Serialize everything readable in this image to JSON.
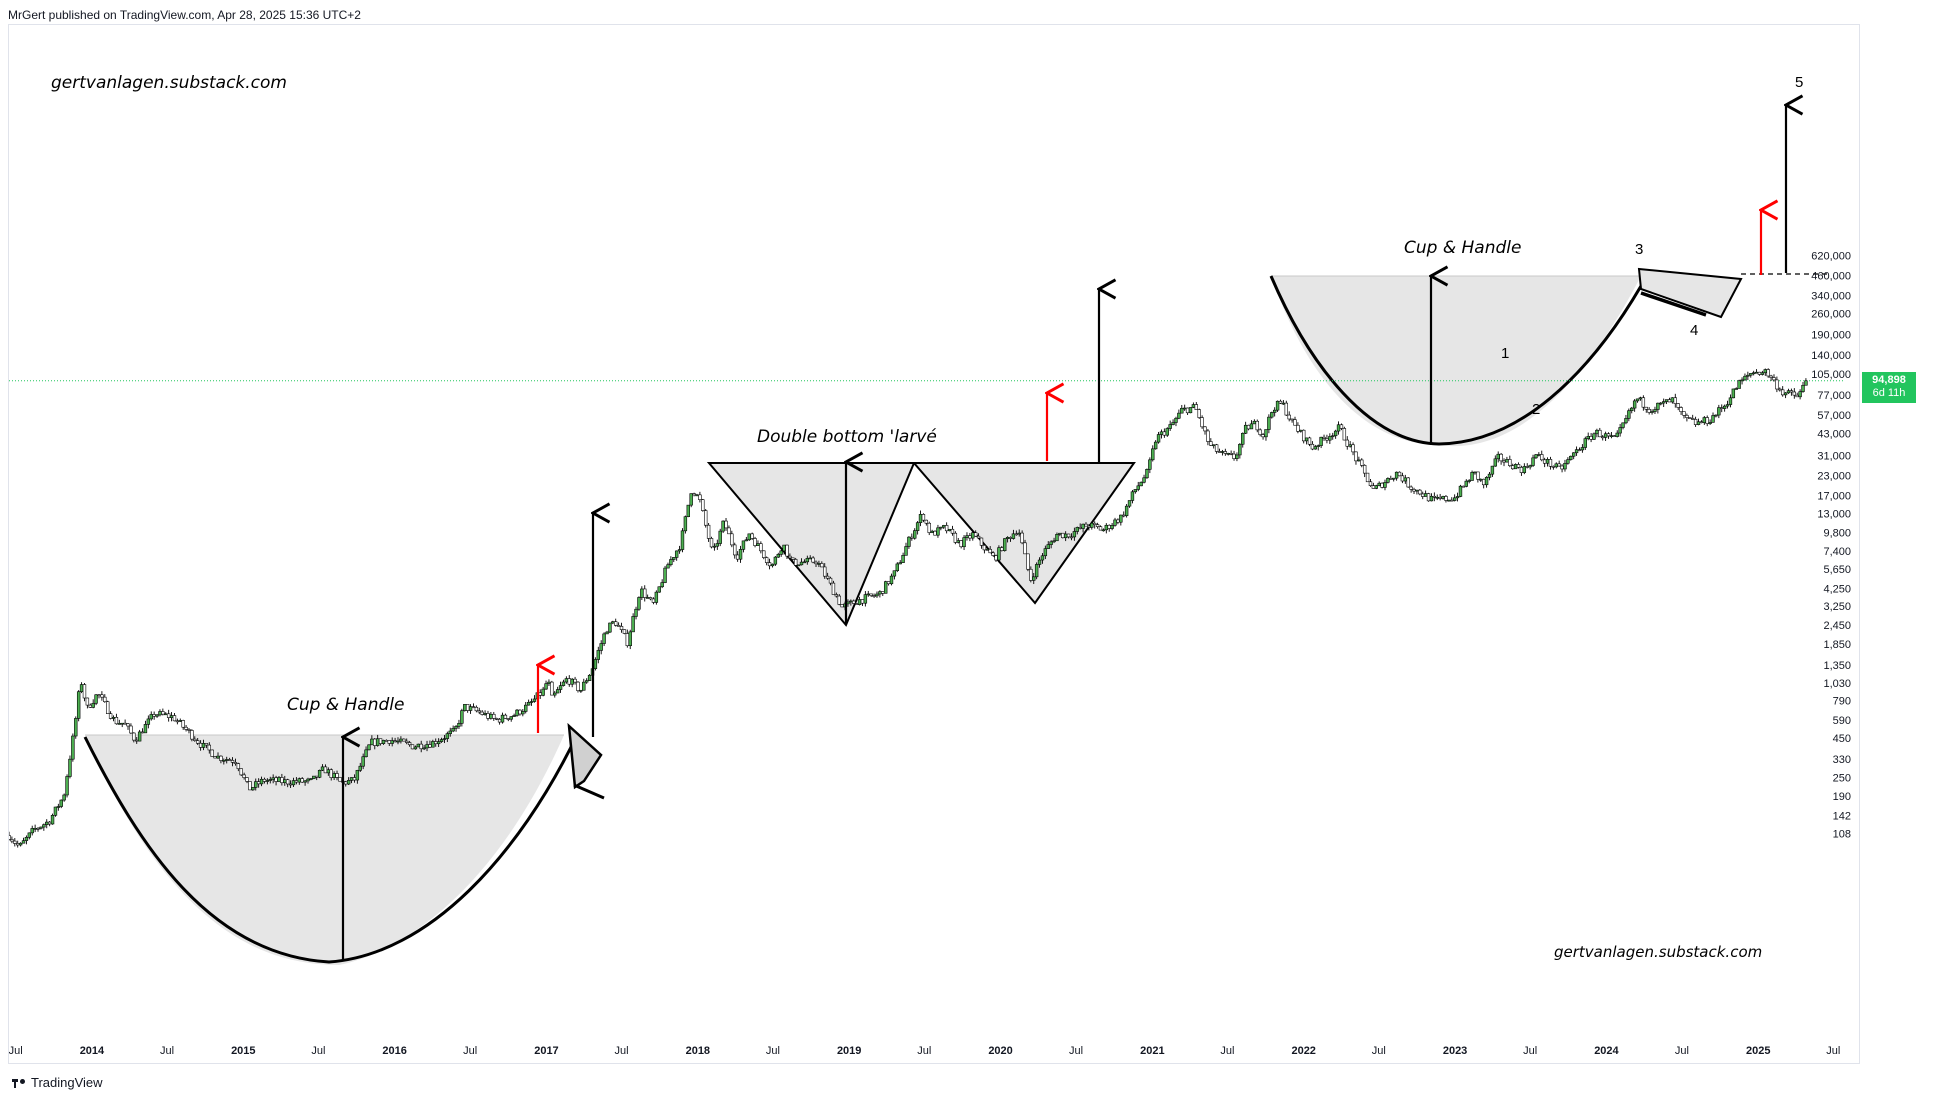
{
  "header": {
    "publisher_line": "MrGert published on TradingView.com, Apr 28, 2025 15:36 UTC+2"
  },
  "footer": {
    "brand": "TradingView"
  },
  "watermarks": {
    "top_left": "gertvanlagen.substack.com",
    "bottom_right": "gertvanlagen.substack.com"
  },
  "price_badge": {
    "price": "94,898",
    "countdown": "6d 11h",
    "color": "#22c55e"
  },
  "annotations": {
    "cup1_title": "Cup & Handle",
    "double_bottom_title": "Double bottom 'larvé",
    "cup2_title": "Cup & Handle",
    "wave_labels": [
      "1",
      "2",
      "3",
      "4",
      "5"
    ]
  },
  "colors": {
    "candle_up": "#26a69a",
    "candle_down": "#ef5350",
    "pattern_fill": "#e6e6e6",
    "red_arrow": "#ff0000",
    "current_price_line": "#22c55e"
  },
  "chart_data": {
    "type": "candlestick",
    "y_scale": "log",
    "ylim": [
      80,
      850000
    ],
    "xlim": [
      "2013-06-15",
      "2025-09-01"
    ],
    "y_ticks": [
      {
        "value": 108,
        "label": "108"
      },
      {
        "value": 142,
        "label": "142"
      },
      {
        "value": 190,
        "label": "190"
      },
      {
        "value": 250,
        "label": "250"
      },
      {
        "value": 330,
        "label": "330"
      },
      {
        "value": 450,
        "label": "450"
      },
      {
        "value": 590,
        "label": "590"
      },
      {
        "value": 790,
        "label": "790"
      },
      {
        "value": 1030,
        "label": "1,030"
      },
      {
        "value": 1350,
        "label": "1,350"
      },
      {
        "value": 1850,
        "label": "1,850"
      },
      {
        "value": 2450,
        "label": "2,450"
      },
      {
        "value": 3250,
        "label": "3,250"
      },
      {
        "value": 4250,
        "label": "4,250"
      },
      {
        "value": 5650,
        "label": "5,650"
      },
      {
        "value": 7400,
        "label": "7,400"
      },
      {
        "value": 9800,
        "label": "9,800"
      },
      {
        "value": 13000,
        "label": "13,000"
      },
      {
        "value": 17000,
        "label": "17,000"
      },
      {
        "value": 23000,
        "label": "23,000"
      },
      {
        "value": 31000,
        "label": "31,000"
      },
      {
        "value": 43000,
        "label": "43,000"
      },
      {
        "value": 57000,
        "label": "57,000"
      },
      {
        "value": 77000,
        "label": "77,000"
      },
      {
        "value": 105000,
        "label": "105,000"
      },
      {
        "value": 140000,
        "label": "140,000"
      },
      {
        "value": 190000,
        "label": "190,000"
      },
      {
        "value": 260000,
        "label": "260,000"
      },
      {
        "value": 340000,
        "label": "340,000"
      },
      {
        "value": 460000,
        "label": "460,000"
      },
      {
        "value": 620000,
        "label": "620,000"
      }
    ],
    "x_ticks": [
      {
        "date": "2013-07-01",
        "label": "Jul",
        "year": false
      },
      {
        "date": "2014-01-01",
        "label": "2014",
        "year": true
      },
      {
        "date": "2014-07-01",
        "label": "Jul",
        "year": false
      },
      {
        "date": "2015-01-01",
        "label": "2015",
        "year": true
      },
      {
        "date": "2015-07-01",
        "label": "Jul",
        "year": false
      },
      {
        "date": "2016-01-01",
        "label": "2016",
        "year": true
      },
      {
        "date": "2016-07-01",
        "label": "Jul",
        "year": false
      },
      {
        "date": "2017-01-01",
        "label": "2017",
        "year": true
      },
      {
        "date": "2017-07-01",
        "label": "Jul",
        "year": false
      },
      {
        "date": "2018-01-01",
        "label": "2018",
        "year": true
      },
      {
        "date": "2018-07-01",
        "label": "Jul",
        "year": false
      },
      {
        "date": "2019-01-01",
        "label": "2019",
        "year": true
      },
      {
        "date": "2019-07-01",
        "label": "Jul",
        "year": false
      },
      {
        "date": "2020-01-01",
        "label": "2020",
        "year": true
      },
      {
        "date": "2020-07-01",
        "label": "Jul",
        "year": false
      },
      {
        "date": "2021-01-01",
        "label": "2021",
        "year": true
      },
      {
        "date": "2021-07-01",
        "label": "Jul",
        "year": false
      },
      {
        "date": "2022-01-01",
        "label": "2022",
        "year": true
      },
      {
        "date": "2022-07-01",
        "label": "Jul",
        "year": false
      },
      {
        "date": "2023-01-01",
        "label": "2023",
        "year": true
      },
      {
        "date": "2023-07-01",
        "label": "Jul",
        "year": false
      },
      {
        "date": "2024-01-01",
        "label": "2024",
        "year": true
      },
      {
        "date": "2024-07-01",
        "label": "Jul",
        "year": false
      },
      {
        "date": "2025-01-01",
        "label": "2025",
        "year": true
      },
      {
        "date": "2025-07-01",
        "label": "Jul",
        "year": false
      }
    ],
    "current_price": 94898,
    "price_path": [
      [
        "2013-06-15",
        105
      ],
      [
        "2013-07-10",
        88
      ],
      [
        "2013-08-15",
        115
      ],
      [
        "2013-09-20",
        130
      ],
      [
        "2013-10-25",
        190
      ],
      [
        "2013-11-20",
        520
      ],
      [
        "2013-12-05",
        1100
      ],
      [
        "2013-12-20",
        700
      ],
      [
        "2014-01-15",
        880
      ],
      [
        "2014-02-25",
        580
      ],
      [
        "2014-03-20",
        560
      ],
      [
        "2014-04-15",
        440
      ],
      [
        "2014-06-01",
        650
      ],
      [
        "2014-07-15",
        620
      ],
      [
        "2014-08-20",
        500
      ],
      [
        "2014-09-25",
        400
      ],
      [
        "2014-11-01",
        340
      ],
      [
        "2014-12-15",
        320
      ],
      [
        "2015-01-14",
        210
      ],
      [
        "2015-02-20",
        240
      ],
      [
        "2015-04-10",
        235
      ],
      [
        "2015-06-15",
        235
      ],
      [
        "2015-07-15",
        285
      ],
      [
        "2015-08-25",
        230
      ],
      [
        "2015-09-25",
        240
      ],
      [
        "2015-11-04",
        420
      ],
      [
        "2015-12-20",
        440
      ],
      [
        "2016-02-15",
        400
      ],
      [
        "2016-04-01",
        420
      ],
      [
        "2016-05-25",
        500
      ],
      [
        "2016-06-17",
        720
      ],
      [
        "2016-07-25",
        660
      ],
      [
        "2016-09-01",
        590
      ],
      [
        "2016-10-15",
        640
      ],
      [
        "2016-11-20",
        740
      ],
      [
        "2016-12-25",
        920
      ],
      [
        "2017-01-05",
        1100
      ],
      [
        "2017-01-12",
        800
      ],
      [
        "2017-02-20",
        1100
      ],
      [
        "2017-03-24",
        920
      ],
      [
        "2017-04-20",
        1250
      ],
      [
        "2017-05-25",
        2300
      ],
      [
        "2017-06-15",
        2600
      ],
      [
        "2017-07-15",
        1900
      ],
      [
        "2017-08-15",
        4200
      ],
      [
        "2017-09-15",
        3300
      ],
      [
        "2017-10-20",
        6000
      ],
      [
        "2017-11-20",
        8200
      ],
      [
        "2017-12-17",
        19000
      ],
      [
        "2018-01-05",
        16000
      ],
      [
        "2018-02-06",
        7000
      ],
      [
        "2018-03-05",
        11500
      ],
      [
        "2018-04-05",
        6800
      ],
      [
        "2018-05-05",
        9700
      ],
      [
        "2018-06-28",
        5900
      ],
      [
        "2018-07-25",
        8300
      ],
      [
        "2018-08-15",
        6200
      ],
      [
        "2018-10-15",
        6400
      ],
      [
        "2018-11-20",
        4300
      ],
      [
        "2018-12-15",
        3200
      ],
      [
        "2019-01-25",
        3550
      ],
      [
        "2019-03-15",
        3900
      ],
      [
        "2019-04-20",
        5300
      ],
      [
        "2019-05-25",
        8700
      ],
      [
        "2019-06-26",
        13000
      ],
      [
        "2019-07-17",
        9500
      ],
      [
        "2019-08-20",
        10500
      ],
      [
        "2019-09-25",
        8200
      ],
      [
        "2019-10-26",
        9500
      ],
      [
        "2019-12-17",
        6600
      ],
      [
        "2020-01-15",
        8800
      ],
      [
        "2020-02-13",
        10400
      ],
      [
        "2020-03-13",
        4800
      ],
      [
        "2020-04-10",
        7000
      ],
      [
        "2020-05-15",
        9500
      ],
      [
        "2020-06-15",
        9500
      ],
      [
        "2020-07-28",
        11000
      ],
      [
        "2020-09-05",
        10200
      ],
      [
        "2020-10-20",
        12500
      ],
      [
        "2020-11-20",
        18500
      ],
      [
        "2020-12-20",
        24000
      ],
      [
        "2021-01-10",
        40000
      ],
      [
        "2021-02-15",
        48000
      ],
      [
        "2021-03-13",
        61000
      ],
      [
        "2021-04-14",
        64000
      ],
      [
        "2021-05-19",
        36000
      ],
      [
        "2021-06-22",
        31000
      ],
      [
        "2021-07-20",
        30000
      ],
      [
        "2021-08-15",
        47000
      ],
      [
        "2021-09-07",
        50000
      ],
      [
        "2021-09-25",
        42000
      ],
      [
        "2021-10-20",
        64000
      ],
      [
        "2021-11-10",
        68000
      ],
      [
        "2021-12-05",
        50000
      ],
      [
        "2022-01-22",
        35000
      ],
      [
        "2022-03-28",
        47000
      ],
      [
        "2022-05-12",
        28000
      ],
      [
        "2022-06-18",
        18500
      ],
      [
        "2022-08-14",
        24000
      ],
      [
        "2022-09-15",
        19500
      ],
      [
        "2022-11-09",
        15800
      ],
      [
        "2022-12-31",
        16500
      ],
      [
        "2023-02-15",
        24000
      ],
      [
        "2023-03-12",
        20000
      ],
      [
        "2023-04-14",
        30000
      ],
      [
        "2023-06-15",
        25000
      ],
      [
        "2023-07-15",
        31000
      ],
      [
        "2023-09-11",
        25000
      ],
      [
        "2023-10-24",
        34000
      ],
      [
        "2023-12-05",
        44000
      ],
      [
        "2024-01-23",
        39000
      ],
      [
        "2024-03-14",
        73000
      ],
      [
        "2024-04-15",
        62000
      ],
      [
        "2024-06-07",
        71000
      ],
      [
        "2024-07-05",
        54000
      ],
      [
        "2024-08-05",
        50000
      ],
      [
        "2024-09-06",
        53000
      ],
      [
        "2024-10-15",
        67000
      ],
      [
        "2024-11-13",
        90000
      ],
      [
        "2024-12-17",
        108000
      ],
      [
        "2025-01-20",
        109000
      ],
      [
        "2025-02-28",
        80000
      ],
      [
        "2025-04-07",
        75000
      ],
      [
        "2025-04-27",
        94898
      ]
    ]
  }
}
